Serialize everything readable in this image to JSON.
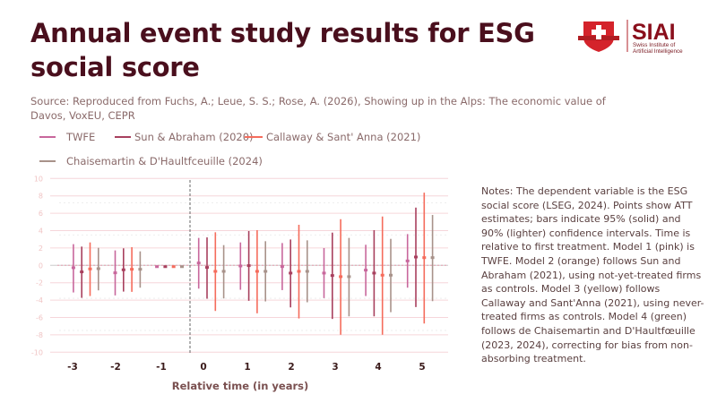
{
  "title": "Annual event study results for ESG social score",
  "source": "Source: Reproduced from Fuchs, A.; Leue, S. S.; Rose, A. (2026), Showing up in the Alps: The economic value of Davos, VoxEU, CEPR",
  "logo": {
    "name": "SIAI",
    "subtitle": "Swiss Institute of Artificial Intelligence"
  },
  "notes": "Notes: The dependent variable is the ESG social score (LSEG, 2024). Points show ATT estimates; bars indicate 95% (solid) and 90% (lighter) confidence intervals. Time is relative to first treatment. Model 1 (pink) is TWFE. Model 2 (orange) follows Sun and Abraham (2021), using not-yet-treated firms as controls. Model 3 (yellow) follows Callaway and Sant'Anna (2021), using never-treated firms as controls. Model 4 (green) follows de Chaisemartin and D'Haultfœuille (2023, 2024), correcting for bias from non-absorbing treatment.",
  "chart_data": {
    "type": "scatter",
    "title": "Annual event study results for ESG social score",
    "xlabel": "Relative time (in years)",
    "ylabel": "",
    "ylim": [
      -10,
      10
    ],
    "yticks": [
      "10",
      "8",
      "6",
      "4",
      "2",
      "0",
      "-2",
      "-4",
      "-6",
      "-8",
      "-10"
    ],
    "x": [
      -3,
      -2,
      -1,
      0,
      1,
      2,
      3,
      4,
      5
    ],
    "xtick_labels": [
      "-3",
      "-2",
      "-1",
      "0",
      "1",
      "2",
      "3",
      "4",
      "5"
    ],
    "treatment_line_at": -0.5,
    "legend_placement": "top",
    "series": [
      {
        "name": "TWFE",
        "color": "#c8679c",
        "estimate": [
          -0.27,
          -0.86,
          -0.15,
          0.27,
          -0.07,
          -0.14,
          -0.89,
          -0.55,
          0.51
        ],
        "ci_low": [
          -3.12,
          -3.46,
          null,
          -2.68,
          -2.81,
          -2.85,
          -3.77,
          -3.53,
          -2.57
        ],
        "ci_high": [
          2.44,
          1.72,
          null,
          3.16,
          2.64,
          2.57,
          1.99,
          2.37,
          3.6
        ]
      },
      {
        "name": "Sun & Abraham (2020)",
        "color": "#a8405e",
        "estimate": [
          -0.75,
          -0.51,
          -0.15,
          -0.24,
          -0.03,
          -0.89,
          -1.17,
          -0.89,
          0.96
        ],
        "ci_low": [
          -3.74,
          -3.02,
          null,
          -3.84,
          -4.08,
          -4.84,
          -6.17,
          -5.87,
          -4.8
        ],
        "ci_high": [
          2.16,
          1.96,
          null,
          3.22,
          3.95,
          2.98,
          3.77,
          4.05,
          6.65
        ]
      },
      {
        "name": "Callaway & Sant' Anna (2021)",
        "color": "#f56c5c",
        "estimate": [
          -0.41,
          -0.45,
          -0.15,
          -0.69,
          -0.69,
          -0.69,
          -1.3,
          -1.13,
          0.89
        ],
        "ci_low": [
          -3.53,
          -3.05,
          null,
          -5.25,
          -5.52,
          -6.11,
          -7.99,
          -7.99,
          -6.69
        ],
        "ci_high": [
          2.64,
          2.09,
          null,
          3.81,
          4.05,
          4.67,
          5.32,
          5.63,
          8.37
        ]
      },
      {
        "name": "Chaisemartin & D'Haultfceuille (2024)",
        "color": "#a8928a",
        "estimate": [
          -0.38,
          -0.45,
          -0.15,
          -0.69,
          -0.69,
          -0.69,
          -1.3,
          -1.13,
          0.89
        ],
        "ci_low": [
          -2.88,
          -2.57,
          null,
          -3.81,
          -4.15,
          -4.25,
          -5.87,
          -5.39,
          -4.12
        ],
        "ci_high": [
          2.02,
          1.61,
          null,
          2.33,
          2.78,
          2.88,
          3.16,
          3.05,
          5.8
        ]
      }
    ]
  }
}
